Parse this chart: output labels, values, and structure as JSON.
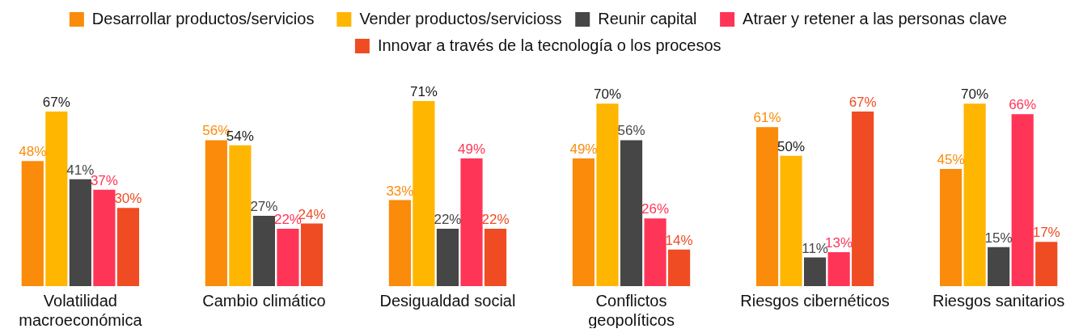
{
  "chart_data": {
    "type": "bar",
    "categories": [
      "Volatilidad macroeconómica",
      "Cambio climático",
      "Desigualdad social",
      "Conflictos geopolíticos",
      "Riesgos cibernéticos",
      "Riesgos sanitarios"
    ],
    "series": [
      {
        "name": "Desarrollar productos/servicios",
        "color": "#fb8b0a",
        "values": [
          48,
          56,
          33,
          49,
          61,
          45
        ],
        "value_labels": [
          "48%",
          "56%",
          "33%",
          "49%",
          "61%",
          "45%"
        ]
      },
      {
        "name": "Vender productos/servicioss",
        "color": "#ffb600",
        "values": [
          67,
          54,
          71,
          70,
          50,
          70
        ],
        "value_labels": [
          "67%",
          "54%",
          "71%",
          "70%",
          "50%",
          "70%"
        ]
      },
      {
        "name": "Reunir capital",
        "color": "#464646",
        "values": [
          41,
          27,
          22,
          56,
          11,
          15
        ],
        "value_labels": [
          "41%",
          "27%",
          "22%",
          "56%",
          "11%",
          "15%"
        ]
      },
      {
        "name": "Atraer y retener a las personas clave",
        "color": "#ff3558",
        "values": [
          37,
          22,
          49,
          26,
          13,
          66
        ],
        "value_labels": [
          "37%",
          "22%",
          "49%",
          "26%",
          "13%",
          "66%"
        ]
      },
      {
        "name": "Innovar a través de la tecnología o los procesos",
        "color": "#f04c23",
        "values": [
          30,
          24,
          22,
          14,
          67,
          17
        ],
        "value_labels": [
          "30%",
          "24%",
          "22%",
          "14%",
          "67%",
          "17%"
        ]
      }
    ],
    "legend": "top"
  }
}
